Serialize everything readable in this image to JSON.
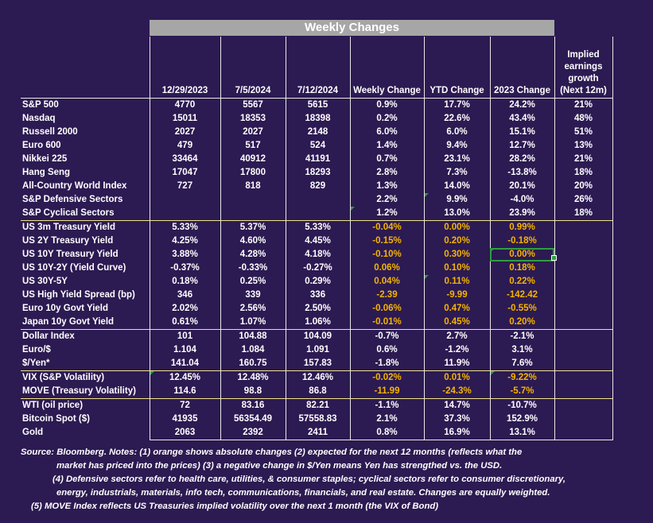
{
  "title": "Weekly Changes",
  "columns": [
    "12/29/2023",
    "7/5/2024",
    "7/12/2024",
    "Weekly Change",
    "YTD Change",
    "2023 Change",
    "Implied earnings growth (Next 12m)"
  ],
  "rows": [
    {
      "label": "S&P 500",
      "values": [
        "4770",
        "5567",
        "5615",
        "0.9%",
        "17.7%",
        "24.2%",
        "21%"
      ],
      "orange": false
    },
    {
      "label": "Nasdaq",
      "values": [
        "15011",
        "18353",
        "18398",
        "0.2%",
        "22.6%",
        "43.4%",
        "48%"
      ],
      "orange": false
    },
    {
      "label": "Russell 2000",
      "values": [
        "2027",
        "2027",
        "2148",
        "6.0%",
        "6.0%",
        "15.1%",
        "51%"
      ],
      "orange": false
    },
    {
      "label": "Euro 600",
      "values": [
        "479",
        "517",
        "524",
        "1.4%",
        "9.4%",
        "12.7%",
        "13%"
      ],
      "orange": false
    },
    {
      "label": "Nikkei 225",
      "values": [
        "33464",
        "40912",
        "41191",
        "0.7%",
        "23.1%",
        "28.2%",
        "21%"
      ],
      "orange": false
    },
    {
      "label": "Hang Seng",
      "values": [
        "17047",
        "17800",
        "18293",
        "2.8%",
        "7.3%",
        "-13.8%",
        "18%"
      ],
      "orange": false
    },
    {
      "label": "All-Country World Index",
      "values": [
        "727",
        "818",
        "829",
        "1.3%",
        "14.0%",
        "20.1%",
        "20%"
      ],
      "orange": false
    },
    {
      "label": "S&P Defensive Sectors",
      "values": [
        "",
        "",
        "",
        "2.2%",
        "9.9%",
        "-4.0%",
        "26%"
      ],
      "orange": false
    },
    {
      "label": "S&P Cyclical Sectors",
      "values": [
        "",
        "",
        "",
        "1.2%",
        "13.0%",
        "23.9%",
        "18%"
      ],
      "orange": false
    },
    {
      "label": "US 3m Treasury Yield",
      "values": [
        "5.33%",
        "5.37%",
        "5.33%",
        "-0.04%",
        "0.00%",
        "0.99%",
        ""
      ],
      "orange": true
    },
    {
      "label": "US 2Y Treasury Yield",
      "values": [
        "4.25%",
        "4.60%",
        "4.45%",
        "-0.15%",
        "0.20%",
        "-0.18%",
        ""
      ],
      "orange": true
    },
    {
      "label": "US 10Y Treasury Yield",
      "values": [
        "3.88%",
        "4.28%",
        "4.18%",
        "-0.10%",
        "0.30%",
        "0.00%",
        ""
      ],
      "orange": true
    },
    {
      "label": "US 10Y-2Y (Yield Curve)",
      "values": [
        "-0.37%",
        "-0.33%",
        "-0.27%",
        "0.06%",
        "0.10%",
        "0.18%",
        ""
      ],
      "orange": true
    },
    {
      "label": "US 30Y-5Y",
      "values": [
        "0.18%",
        "0.25%",
        "0.29%",
        "0.04%",
        "0.11%",
        "0.22%",
        ""
      ],
      "orange": true
    },
    {
      "label": "US High Yield Spread (bp)",
      "values": [
        "346",
        "339",
        "336",
        "-2.39",
        "-9.99",
        "-142.42",
        ""
      ],
      "orange": true
    },
    {
      "label": "Euro 10y Govt Yield",
      "values": [
        "2.02%",
        "2.56%",
        "2.50%",
        "-0.06%",
        "0.47%",
        "-0.55%",
        ""
      ],
      "orange": true
    },
    {
      "label": "Japan 10y Govt Yield",
      "values": [
        "0.61%",
        "1.07%",
        "1.06%",
        "-0.01%",
        "0.45%",
        "0.20%",
        ""
      ],
      "orange": true
    },
    {
      "label": "Dollar Index",
      "values": [
        "101",
        "104.88",
        "104.09",
        "-0.7%",
        "2.7%",
        "-2.1%",
        ""
      ],
      "orange": false
    },
    {
      "label": "Euro/$",
      "values": [
        "1.104",
        "1.084",
        "1.091",
        "0.6%",
        "-1.2%",
        "3.1%",
        ""
      ],
      "orange": false
    },
    {
      "label": "$/Yen*",
      "values": [
        "141.04",
        "160.75",
        "157.83",
        "-1.8%",
        "11.9%",
        "7.6%",
        ""
      ],
      "orange": false
    },
    {
      "label": "VIX (S&P Volatility)",
      "values": [
        "12.45%",
        "12.48%",
        "12.46%",
        "-0.02%",
        "0.01%",
        "-9.22%",
        ""
      ],
      "orange": true
    },
    {
      "label": "MOVE (Treasury Volatility)",
      "values": [
        "114.6",
        "98.8",
        "86.8",
        "-11.99",
        "-24.3%",
        "-5.7%",
        ""
      ],
      "orange": true
    },
    {
      "label": "WTI (oil price)",
      "values": [
        "72",
        "83.16",
        "82.21",
        "-1.1%",
        "14.7%",
        "-10.7%",
        ""
      ],
      "orange": false
    },
    {
      "label": "Bitcoin Spot ($)",
      "values": [
        "41935",
        "56354.49",
        "57558.83",
        "2.1%",
        "37.3%",
        "152.9%",
        ""
      ],
      "orange": false
    },
    {
      "label": "Gold",
      "values": [
        "2063",
        "2392",
        "2411",
        "0.8%",
        "16.9%",
        "13.1%",
        ""
      ],
      "orange": false
    }
  ],
  "notes": [
    "Source: Bloomberg. Notes: (1) orange shows absolute changes (2) expected for the next 12 months (reflects what the",
    "market has priced into the prices) (3) a negative change in $/Yen means Yen has strengthed vs. the USD.",
    "(4) Defensive sectors refer to health care, utilities, & consumer staples; cyclical sectors refer to consumer discretionary,",
    "energy, industrials, materials, info tech, communications, financials, and real estate. Changes are equally weighted.",
    "(5) MOVE Index reflects US Treasuries implied volatility over the next 1 month (the VIX of Bond)"
  ],
  "colors": {
    "background": "#2c1a52",
    "orange": "#f5b400",
    "header_bar": "#a6a6a6",
    "selection": "#2e9e3e"
  }
}
